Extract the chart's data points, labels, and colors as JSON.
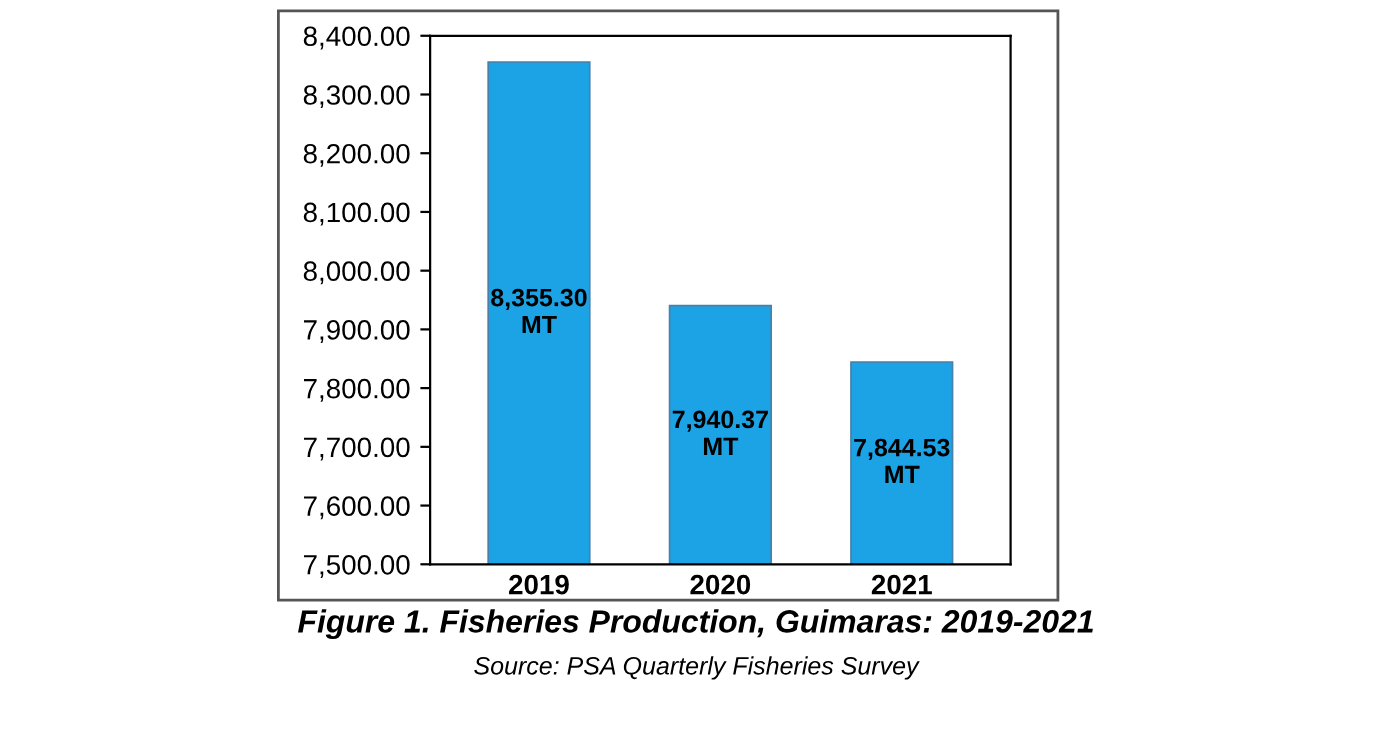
{
  "chart_data": {
    "type": "bar",
    "title": "Figure 1. Fisheries Production, Guimaras: 2019-2021",
    "categories": [
      "2019",
      "2020",
      "2021"
    ],
    "values": [
      8355.3,
      7940.37,
      7844.53
    ],
    "value_labels": [
      "8,355.30\nMT",
      "7,940.37\nMT",
      "7,844.53\nMT"
    ],
    "color": "#1ba3e6",
    "ylim": [
      7500,
      8400
    ],
    "yticks": [
      {
        "value": 7500,
        "label": "7,500.00"
      },
      {
        "value": 7600,
        "label": "7,600.00"
      },
      {
        "value": 7700,
        "label": "7,700.00"
      },
      {
        "value": 7800,
        "label": "7,800.00"
      },
      {
        "value": 7900,
        "label": "7,900.00"
      },
      {
        "value": 8000,
        "label": "8,000.00"
      },
      {
        "value": 8100,
        "label": "8,100.00"
      },
      {
        "value": 8200,
        "label": "8,200.00"
      },
      {
        "value": 8300,
        "label": "8,300.00"
      },
      {
        "value": 8400,
        "label": "8,400.00"
      }
    ],
    "grid": false,
    "annotations": [
      "Source: PSA Quarterly Fisheries Survey"
    ]
  }
}
